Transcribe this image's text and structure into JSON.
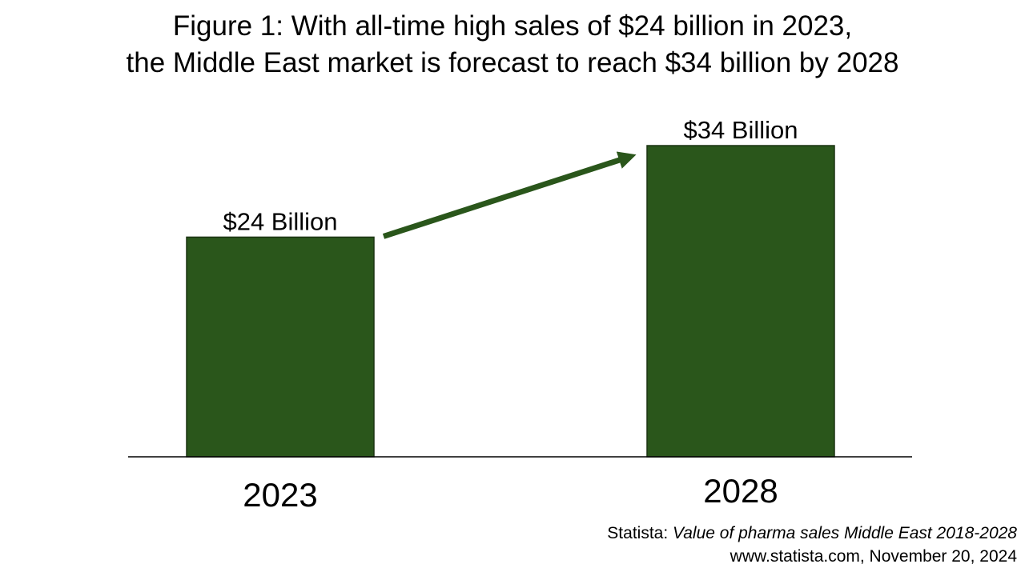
{
  "title": {
    "line1": "Figure 1: With all-time high sales of $24 billion in 2023,",
    "line2": "the Middle East market is forecast to reach $34 billion by 2028"
  },
  "chart_data": {
    "type": "bar",
    "categories": [
      "2023",
      "2028"
    ],
    "values": [
      24,
      34
    ],
    "data_labels": [
      "$24 Billion",
      "$34 Billion"
    ],
    "unit": "billion USD",
    "ylim": [
      0,
      34
    ],
    "grid": false,
    "annotation": "arrow from 2023 bar to 2028 bar",
    "colors": {
      "bar": "#2a561b",
      "bar_border": "#1b3312",
      "arrow": "#2a561b",
      "axis": "#000000"
    }
  },
  "source": {
    "prefix": "Statista: ",
    "title": "Value of pharma sales Middle East 2018-2028",
    "line2": "www.statista.com, November 20, 2024"
  }
}
